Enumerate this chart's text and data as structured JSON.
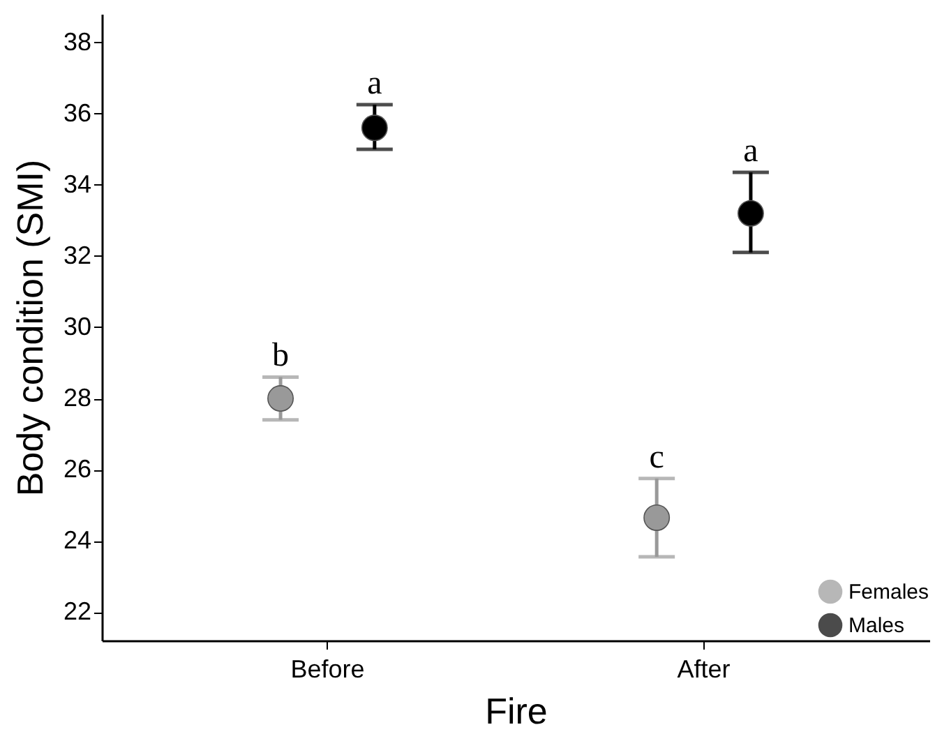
{
  "chart_data": {
    "type": "scatter",
    "xlabel": "Fire",
    "ylabel": "Body condition (SMI)",
    "categories": [
      "Before",
      "After"
    ],
    "series": [
      {
        "name": "Females",
        "color": "#999999",
        "values": [
          28.0,
          24.65
        ],
        "errors": [
          [
            27.4,
            28.6
          ],
          [
            23.55,
            25.75
          ]
        ]
      },
      {
        "name": "Males",
        "color": "#000000",
        "values": [
          35.6,
          33.2
        ],
        "errors": [
          [
            35.0,
            36.25
          ],
          [
            32.1,
            34.35
          ]
        ]
      }
    ],
    "ylim": [
      21.2,
      38.8
    ],
    "yticks": [
      22,
      24,
      26,
      28,
      30,
      32,
      34,
      36,
      38
    ],
    "annotations": [
      "b",
      "c",
      "a",
      "a"
    ],
    "legend": "bottom right",
    "marker": "circle",
    "grid": false
  }
}
